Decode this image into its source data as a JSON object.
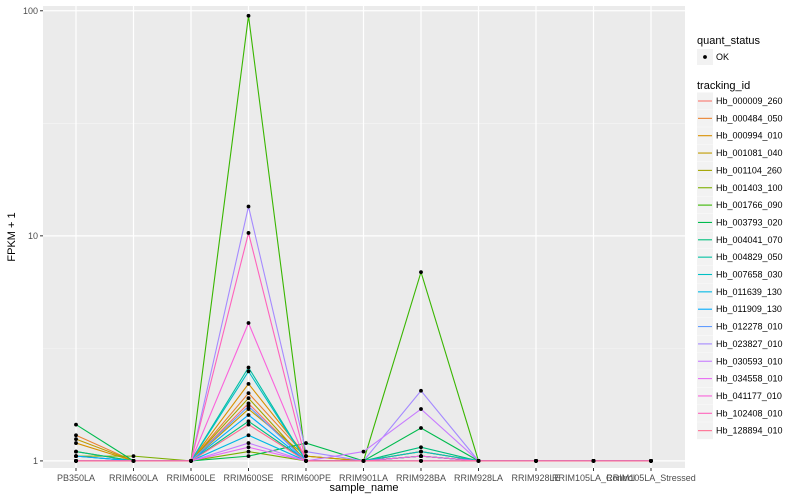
{
  "chart_data": {
    "type": "line",
    "xlabel": "sample_name",
    "ylabel": "FPKM + 1",
    "y_scale": "log10",
    "ylim": [
      0.93,
      105
    ],
    "y_ticks": [
      "1",
      "10",
      "100"
    ],
    "y_tick_values": [
      1,
      10,
      100
    ],
    "grid": true,
    "legend_position": "right",
    "categories": [
      "PB350LA",
      "RRIM600LA",
      "RRIM600LE",
      "RRIM600SE",
      "RRIM600PE",
      "RRIM901LA",
      "RRIM928BA",
      "RRIM928LA",
      "RRIM928LE",
      "RRIM105LA_Control",
      "RRIM105LA_Stressed"
    ],
    "quant_status_legend": {
      "title": "quant_status",
      "entries": [
        "OK"
      ]
    },
    "tracking_legend_title": "tracking_id",
    "series": [
      {
        "name": "Hb_000009_260",
        "color": "#F8766D",
        "values": [
          1.05,
          1.0,
          1.0,
          1.8,
          1.0,
          1.0,
          1.05,
          1.0,
          1.0,
          1.0,
          1.0
        ]
      },
      {
        "name": "Hb_000484_050",
        "color": "#EA8331",
        "values": [
          1.3,
          1.0,
          1.0,
          2.0,
          1.05,
          1.0,
          1.1,
          1.0,
          1.0,
          1.0,
          1.0
        ]
      },
      {
        "name": "Hb_000994_010",
        "color": "#D89000",
        "values": [
          1.2,
          1.0,
          1.0,
          2.2,
          1.05,
          1.0,
          1.1,
          1.0,
          1.0,
          1.0,
          1.0
        ]
      },
      {
        "name": "Hb_001081_040",
        "color": "#C09B00",
        "values": [
          1.25,
          1.0,
          1.0,
          1.7,
          1.05,
          1.0,
          1.05,
          1.0,
          1.0,
          1.0,
          1.0
        ]
      },
      {
        "name": "Hb_001104_260",
        "color": "#A3A500",
        "values": [
          1.1,
          1.0,
          1.0,
          1.9,
          1.0,
          1.0,
          1.05,
          1.0,
          1.0,
          1.0,
          1.0
        ]
      },
      {
        "name": "Hb_001403_100",
        "color": "#7CAE00",
        "values": [
          1.05,
          1.05,
          1.0,
          1.1,
          1.0,
          1.0,
          1.05,
          1.0,
          1.0,
          1.0,
          1.0
        ]
      },
      {
        "name": "Hb_001766_090",
        "color": "#39B600",
        "values": [
          1.0,
          1.0,
          1.0,
          95.0,
          1.0,
          1.0,
          6.9,
          1.0,
          1.0,
          1.0,
          1.0
        ]
      },
      {
        "name": "Hb_003793_020",
        "color": "#00BB4E",
        "values": [
          1.45,
          1.0,
          1.0,
          1.05,
          1.2,
          1.0,
          1.4,
          1.0,
          1.0,
          1.0,
          1.0
        ]
      },
      {
        "name": "Hb_004041_070",
        "color": "#00BF7D",
        "values": [
          1.1,
          1.0,
          1.0,
          1.5,
          1.0,
          1.0,
          1.15,
          1.0,
          1.0,
          1.0,
          1.0
        ]
      },
      {
        "name": "Hb_004829_050",
        "color": "#00C1A3",
        "values": [
          1.0,
          1.0,
          1.0,
          2.6,
          1.0,
          1.0,
          1.05,
          1.0,
          1.0,
          1.0,
          1.0
        ]
      },
      {
        "name": "Hb_007658_030",
        "color": "#00BFC4",
        "values": [
          1.05,
          1.0,
          1.0,
          2.5,
          1.0,
          1.0,
          1.1,
          1.0,
          1.0,
          1.0,
          1.0
        ]
      },
      {
        "name": "Hb_011639_130",
        "color": "#00B8E5",
        "values": [
          1.0,
          1.0,
          1.0,
          1.3,
          1.0,
          1.0,
          1.0,
          1.0,
          1.0,
          1.0,
          1.0
        ]
      },
      {
        "name": "Hb_011909_130",
        "color": "#00ABFD",
        "values": [
          1.05,
          1.0,
          1.0,
          1.6,
          1.0,
          1.0,
          1.05,
          1.0,
          1.0,
          1.0,
          1.0
        ]
      },
      {
        "name": "Hb_012278_010",
        "color": "#619CFF",
        "values": [
          1.0,
          1.0,
          1.0,
          1.75,
          1.0,
          1.0,
          1.0,
          1.0,
          1.0,
          1.0,
          1.0
        ]
      },
      {
        "name": "Hb_023827_010",
        "color": "#A58AFF",
        "values": [
          1.0,
          1.0,
          1.0,
          13.5,
          1.1,
          1.0,
          2.05,
          1.0,
          1.0,
          1.0,
          1.0
        ]
      },
      {
        "name": "Hb_030593_010",
        "color": "#C77CFF",
        "values": [
          1.0,
          1.0,
          1.0,
          1.2,
          1.0,
          1.1,
          1.7,
          1.0,
          1.0,
          1.0,
          1.0
        ]
      },
      {
        "name": "Hb_034558_010",
        "color": "#E76BF3",
        "values": [
          1.0,
          1.0,
          1.0,
          1.15,
          1.0,
          1.0,
          1.0,
          1.0,
          1.0,
          1.0,
          1.0
        ]
      },
      {
        "name": "Hb_041177_010",
        "color": "#FA62DB",
        "values": [
          1.0,
          1.0,
          1.0,
          4.1,
          1.0,
          1.0,
          1.05,
          1.0,
          1.0,
          1.0,
          1.0
        ]
      },
      {
        "name": "Hb_102408_010",
        "color": "#FF62BC",
        "values": [
          1.0,
          1.0,
          1.0,
          10.3,
          1.0,
          1.0,
          1.0,
          1.0,
          1.0,
          1.0,
          1.0
        ]
      },
      {
        "name": "Hb_128894_010",
        "color": "#FF6C91",
        "values": [
          1.0,
          1.0,
          1.0,
          1.45,
          1.0,
          1.0,
          1.0,
          1.0,
          1.0,
          1.0,
          1.0
        ]
      }
    ]
  }
}
